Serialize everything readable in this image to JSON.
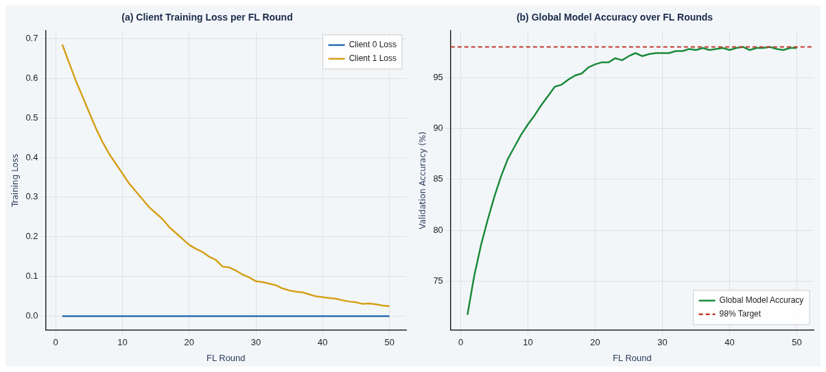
{
  "chart_data": [
    {
      "type": "line",
      "title": "(a) Client Training Loss per FL Round",
      "xlabel": "FL Round",
      "ylabel": "Training Loss",
      "x": [
        1,
        2,
        3,
        4,
        5,
        6,
        7,
        8,
        9,
        10,
        11,
        12,
        13,
        14,
        15,
        16,
        17,
        18,
        19,
        20,
        21,
        22,
        23,
        24,
        25,
        26,
        27,
        28,
        29,
        30,
        31,
        32,
        33,
        34,
        35,
        36,
        37,
        38,
        39,
        40,
        41,
        42,
        43,
        44,
        45,
        46,
        47,
        48,
        49,
        50
      ],
      "xlim": [
        -1.5,
        52.5
      ],
      "xticks": [
        0,
        10,
        20,
        30,
        40,
        50
      ],
      "ylim": [
        -0.035,
        0.72
      ],
      "yticks": [
        {
          "value": 0,
          "label": "0.0"
        },
        {
          "value": 0.1,
          "label": "0.1"
        },
        {
          "value": 0.2,
          "label": "0.2"
        },
        {
          "value": 0.3,
          "label": "0.3"
        },
        {
          "value": 0.4,
          "label": "0.4"
        },
        {
          "value": 0.5,
          "label": "0.5"
        },
        {
          "value": 0.6,
          "label": "0.6"
        },
        {
          "value": 0.7,
          "label": "0.7"
        }
      ],
      "grid": true,
      "legend": "top right",
      "marker": "none",
      "line_style": "solid",
      "series": [
        {
          "name": "Client 0 Loss",
          "color": "#2b6cb0",
          "values": [
            0,
            0,
            0,
            0,
            0,
            0,
            0,
            0,
            0,
            0,
            0,
            0,
            0,
            0,
            0,
            0,
            0,
            0,
            0,
            0,
            0,
            0,
            0,
            0,
            0,
            0,
            0,
            0,
            0,
            0,
            0,
            0,
            0,
            0,
            0,
            0,
            0,
            0,
            0,
            0,
            0,
            0,
            0,
            0,
            0,
            0,
            0,
            0,
            0,
            0
          ]
        },
        {
          "name": "Client 1 Loss",
          "color": "#d4a017",
          "values": [
            0.685,
            0.64,
            0.595,
            0.555,
            0.515,
            0.475,
            0.44,
            0.41,
            0.385,
            0.36,
            0.335,
            0.315,
            0.295,
            0.275,
            0.26,
            0.245,
            0.225,
            0.21,
            0.195,
            0.18,
            0.17,
            0.162,
            0.15,
            0.142,
            0.125,
            0.123,
            0.115,
            0.105,
            0.098,
            0.088,
            0.086,
            0.082,
            0.078,
            0.07,
            0.065,
            0.062,
            0.06,
            0.055,
            0.05,
            0.048,
            0.046,
            0.044,
            0.04,
            0.037,
            0.035,
            0.031,
            0.032,
            0.03,
            0.027,
            0.025
          ]
        }
      ]
    },
    {
      "type": "line",
      "title": "(b) Global Model Accuracy over FL Rounds",
      "xlabel": "FL Round",
      "ylabel": "Validation Accuracy (%)",
      "x": [
        1,
        2,
        3,
        4,
        5,
        6,
        7,
        8,
        9,
        10,
        11,
        12,
        13,
        14,
        15,
        16,
        17,
        18,
        19,
        20,
        21,
        22,
        23,
        24,
        25,
        26,
        27,
        28,
        29,
        30,
        31,
        32,
        33,
        34,
        35,
        36,
        37,
        38,
        39,
        40,
        41,
        42,
        43,
        44,
        45,
        46,
        47,
        48,
        49,
        50
      ],
      "xlim": [
        -1.5,
        52.5
      ],
      "xticks": [
        0,
        10,
        20,
        30,
        40,
        50
      ],
      "ylim": [
        70.2,
        99.6
      ],
      "yticks": [
        75,
        80,
        85,
        90,
        95
      ],
      "grid": true,
      "legend": "bottom right",
      "marker": "none",
      "line_style": "solid",
      "series": [
        {
          "name": "Global Model Accuracy",
          "color": "#1a8a3a",
          "values": [
            71.7,
            75.5,
            78.5,
            81,
            83.3,
            85.3,
            87,
            88.2,
            89.4,
            90.4,
            91.3,
            92.3,
            93.2,
            94.1,
            94.3,
            94.8,
            95.2,
            95.4,
            96,
            96.3,
            96.5,
            96.5,
            96.9,
            96.7,
            97.1,
            97.4,
            97.1,
            97.3,
            97.4,
            97.4,
            97.4,
            97.6,
            97.6,
            97.8,
            97.7,
            97.9,
            97.7,
            97.8,
            97.9,
            97.7,
            97.9,
            98,
            97.7,
            97.9,
            97.9,
            98,
            97.8,
            97.7,
            97.9,
            97.9
          ]
        }
      ],
      "ref_lines": [
        {
          "axis": "y",
          "value": 98,
          "label": "98% Target",
          "color": "#c0392b",
          "line_style": "dashed"
        }
      ]
    }
  ]
}
